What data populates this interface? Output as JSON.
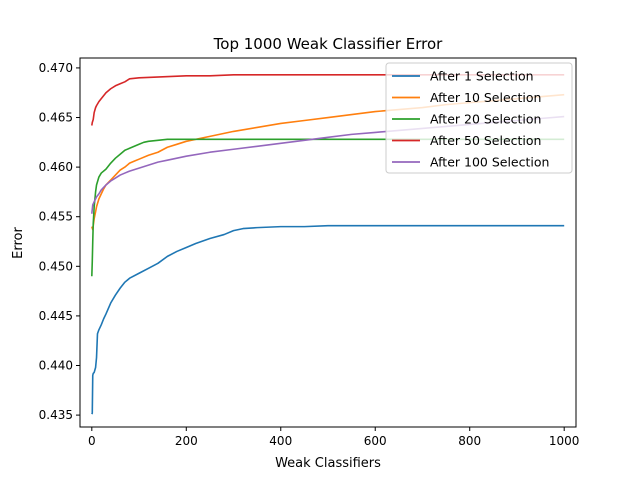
{
  "chart_data": {
    "type": "line",
    "title": "Top 1000 Weak Classifier Error",
    "xlabel": "Weak Classifiers",
    "ylabel": "Error",
    "xlim": [
      -25,
      1025
    ],
    "ylim": [
      0.4338,
      0.471
    ],
    "xticks": [
      0,
      200,
      400,
      600,
      800,
      1000
    ],
    "xtick_labels": [
      "0",
      "200",
      "400",
      "600",
      "800",
      "1000"
    ],
    "yticks": [
      0.435,
      0.44,
      0.445,
      0.45,
      0.455,
      0.46,
      0.465,
      0.47
    ],
    "ytick_labels": [
      "0.435",
      "0.440",
      "0.445",
      "0.450",
      "0.455",
      "0.460",
      "0.465",
      "0.470"
    ],
    "grid": false,
    "legend_position": "top-right",
    "series": [
      {
        "name": "After 1 Selection",
        "color": "#1f77b4",
        "x": [
          0,
          1,
          2,
          3,
          5,
          8,
          10,
          12,
          15,
          20,
          25,
          30,
          40,
          50,
          60,
          70,
          80,
          100,
          120,
          140,
          160,
          180,
          200,
          220,
          250,
          280,
          300,
          320,
          350,
          400,
          450,
          500,
          550,
          600,
          700,
          800,
          900,
          1000
        ],
        "y": [
          0.4351,
          0.4352,
          0.439,
          0.4392,
          0.4393,
          0.4398,
          0.4408,
          0.4432,
          0.4436,
          0.4441,
          0.4447,
          0.4452,
          0.4463,
          0.4471,
          0.4478,
          0.4484,
          0.4488,
          0.4493,
          0.4498,
          0.4503,
          0.451,
          0.4515,
          0.4519,
          0.4523,
          0.4528,
          0.4532,
          0.4536,
          0.4538,
          0.4539,
          0.454,
          0.454,
          0.4541,
          0.4541,
          0.4541,
          0.4541,
          0.4541,
          0.4541,
          0.4541
        ]
      },
      {
        "name": "After 10 Selection",
        "color": "#ff7f0e",
        "x": [
          0,
          2,
          5,
          8,
          10,
          15,
          20,
          25,
          30,
          40,
          50,
          60,
          70,
          80,
          90,
          100,
          120,
          140,
          160,
          180,
          200,
          250,
          300,
          350,
          400,
          450,
          500,
          550,
          600,
          650,
          700,
          750,
          800,
          850,
          900,
          950,
          1000
        ],
        "y": [
          0.454,
          0.4537,
          0.4548,
          0.4555,
          0.456,
          0.4568,
          0.4573,
          0.4578,
          0.4582,
          0.4587,
          0.4592,
          0.4597,
          0.46,
          0.4604,
          0.4606,
          0.4608,
          0.4612,
          0.4615,
          0.462,
          0.4623,
          0.4626,
          0.4631,
          0.4636,
          0.464,
          0.4644,
          0.4647,
          0.465,
          0.4653,
          0.4656,
          0.4658,
          0.466,
          0.4663,
          0.4665,
          0.4667,
          0.4669,
          0.4671,
          0.4673
        ]
      },
      {
        "name": "After 20 Selection",
        "color": "#2ca02c",
        "x": [
          0,
          1,
          2,
          3,
          5,
          8,
          10,
          15,
          20,
          30,
          40,
          50,
          60,
          70,
          80,
          90,
          100,
          110,
          120,
          140,
          160,
          180,
          200,
          250,
          300,
          400,
          500,
          600,
          700,
          800,
          900,
          1000
        ],
        "y": [
          0.449,
          0.4505,
          0.4525,
          0.4543,
          0.456,
          0.4575,
          0.4582,
          0.459,
          0.4594,
          0.4598,
          0.4604,
          0.4609,
          0.4613,
          0.4617,
          0.4619,
          0.4621,
          0.4623,
          0.4625,
          0.4626,
          0.4627,
          0.4628,
          0.4628,
          0.4628,
          0.4628,
          0.4628,
          0.4628,
          0.4628,
          0.4628,
          0.4628,
          0.4628,
          0.4628,
          0.4628
        ]
      },
      {
        "name": "After 50 Selection",
        "color": "#d62728",
        "x": [
          0,
          1,
          3,
          5,
          8,
          10,
          15,
          20,
          30,
          40,
          50,
          60,
          70,
          80,
          100,
          150,
          200,
          250,
          300,
          400,
          500,
          600,
          700,
          800,
          900,
          1000
        ],
        "y": [
          0.4642,
          0.4645,
          0.4648,
          0.4655,
          0.466,
          0.4662,
          0.4666,
          0.4669,
          0.4675,
          0.4679,
          0.4682,
          0.4684,
          0.4686,
          0.4689,
          0.469,
          0.4691,
          0.4692,
          0.4692,
          0.4693,
          0.4693,
          0.4693,
          0.4693,
          0.4693,
          0.4693,
          0.4693,
          0.4693
        ]
      },
      {
        "name": "After 100 Selection",
        "color": "#9467bd",
        "x": [
          0,
          2,
          5,
          8,
          10,
          15,
          20,
          30,
          40,
          50,
          60,
          70,
          80,
          100,
          120,
          140,
          160,
          180,
          200,
          250,
          300,
          350,
          400,
          450,
          500,
          550,
          600,
          650,
          700,
          750,
          800,
          850,
          900,
          950,
          1000
        ],
        "y": [
          0.4553,
          0.4562,
          0.4565,
          0.4568,
          0.457,
          0.4573,
          0.4577,
          0.4582,
          0.4586,
          0.4589,
          0.4592,
          0.4594,
          0.4596,
          0.4599,
          0.4602,
          0.4605,
          0.4607,
          0.4609,
          0.4611,
          0.4615,
          0.4618,
          0.4621,
          0.4624,
          0.4627,
          0.463,
          0.4633,
          0.4635,
          0.4637,
          0.4639,
          0.4641,
          0.4643,
          0.4645,
          0.4647,
          0.4649,
          0.4651
        ]
      }
    ]
  }
}
